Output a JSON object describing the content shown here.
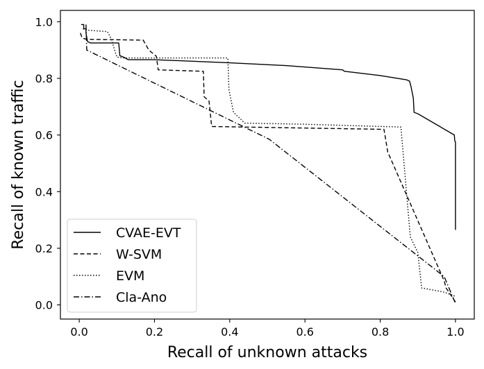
{
  "chart_data": {
    "type": "line",
    "title": "",
    "xlabel": "Recall of unknown attacks",
    "ylabel": "Recall of known traffic",
    "xlim": [
      -0.05,
      1.05
    ],
    "ylim": [
      -0.05,
      1.04
    ],
    "xticks": [
      0.0,
      0.2,
      0.4,
      0.6,
      0.8,
      1.0
    ],
    "xtick_labels": [
      "0.0",
      "0.2",
      "0.4",
      "0.6",
      "0.8",
      "1.0"
    ],
    "yticks": [
      0.0,
      0.2,
      0.4,
      0.6,
      0.8,
      1.0
    ],
    "ytick_labels": [
      "0.0",
      "0.2",
      "0.4",
      "0.6",
      "0.8",
      "1.0"
    ],
    "grid": false,
    "legend_position": "lower-left",
    "series": [
      {
        "name": "CVAE-EVT",
        "linestyle": "solid",
        "color": "#000000",
        "points": [
          [
            0.005,
            0.99
          ],
          [
            0.012,
            0.99
          ],
          [
            0.012,
            0.975
          ],
          [
            0.018,
            0.975
          ],
          [
            0.018,
            0.96
          ],
          [
            0.022,
            0.93
          ],
          [
            0.03,
            0.925
          ],
          [
            0.105,
            0.925
          ],
          [
            0.108,
            0.88
          ],
          [
            0.118,
            0.875
          ],
          [
            0.13,
            0.866
          ],
          [
            0.2,
            0.866
          ],
          [
            0.4,
            0.855
          ],
          [
            0.55,
            0.845
          ],
          [
            0.7,
            0.83
          ],
          [
            0.705,
            0.825
          ],
          [
            0.8,
            0.81
          ],
          [
            0.87,
            0.795
          ],
          [
            0.878,
            0.79
          ],
          [
            0.882,
            0.77
          ],
          [
            0.885,
            0.75
          ],
          [
            0.888,
            0.73
          ],
          [
            0.89,
            0.68
          ],
          [
            0.9,
            0.675
          ],
          [
            0.997,
            0.6
          ],
          [
            0.998,
            0.58
          ],
          [
            1.0,
            0.575
          ],
          [
            1.0,
            0.265
          ]
        ]
      },
      {
        "name": "W-SVM",
        "linestyle": "dashed",
        "color": "#000000",
        "points": [
          [
            0.003,
            0.96
          ],
          [
            0.008,
            0.942
          ],
          [
            0.02,
            0.938
          ],
          [
            0.17,
            0.935
          ],
          [
            0.185,
            0.9
          ],
          [
            0.205,
            0.878
          ],
          [
            0.21,
            0.83
          ],
          [
            0.33,
            0.825
          ],
          [
            0.332,
            0.735
          ],
          [
            0.345,
            0.72
          ],
          [
            0.352,
            0.63
          ],
          [
            0.81,
            0.62
          ],
          [
            0.82,
            0.54
          ],
          [
            0.97,
            0.085
          ],
          [
            0.975,
            0.06
          ],
          [
            1.0,
            0.01
          ]
        ]
      },
      {
        "name": "EVM",
        "linestyle": "dotted",
        "color": "#000000",
        "points": [
          [
            0.01,
            0.975
          ],
          [
            0.025,
            0.97
          ],
          [
            0.075,
            0.965
          ],
          [
            0.085,
            0.94
          ],
          [
            0.1,
            0.875
          ],
          [
            0.12,
            0.872
          ],
          [
            0.395,
            0.872
          ],
          [
            0.398,
            0.76
          ],
          [
            0.41,
            0.68
          ],
          [
            0.44,
            0.642
          ],
          [
            0.6,
            0.638
          ],
          [
            0.855,
            0.628
          ],
          [
            0.88,
            0.24
          ],
          [
            0.9,
            0.185
          ],
          [
            0.91,
            0.06
          ],
          [
            0.97,
            0.045
          ],
          [
            1.0,
            0.03
          ]
        ]
      },
      {
        "name": "Cla-Ano",
        "linestyle": "dashdot",
        "color": "#000000",
        "points": [
          [
            0.018,
            0.99
          ],
          [
            0.02,
            0.9
          ],
          [
            0.505,
            0.585
          ],
          [
            0.97,
            0.1
          ],
          [
            1.0,
            0.005
          ]
        ]
      }
    ]
  }
}
